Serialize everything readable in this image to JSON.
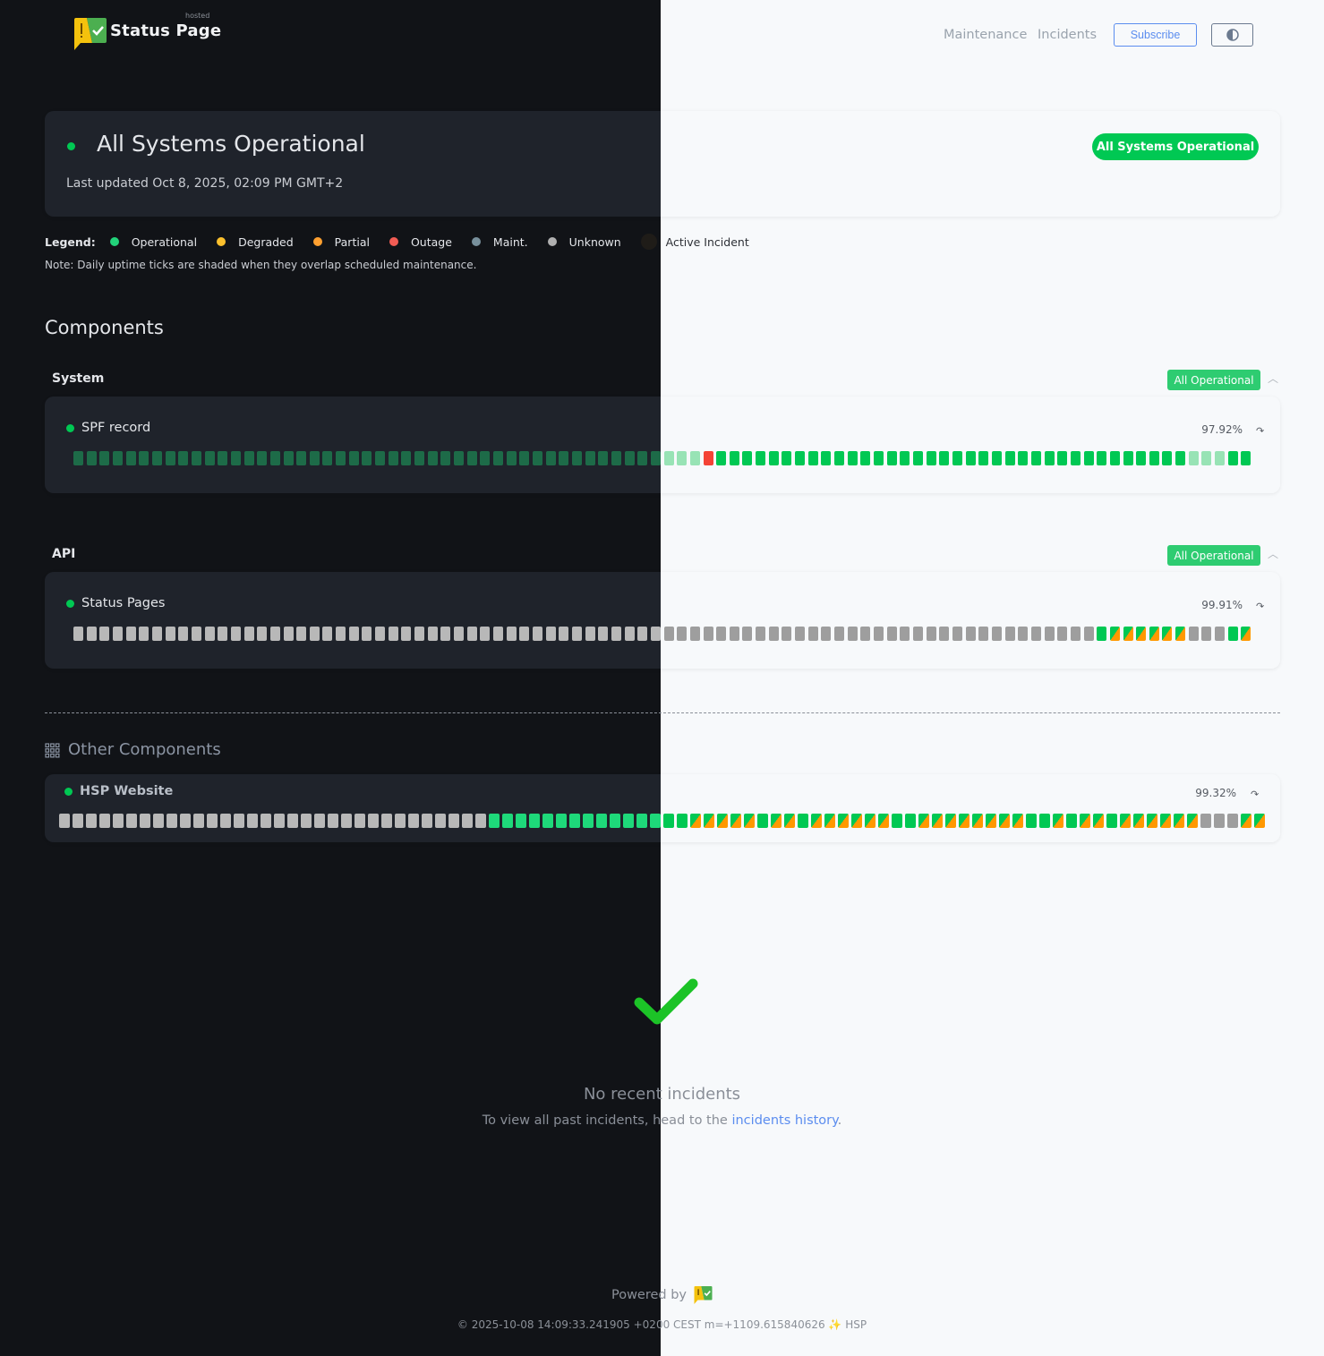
{
  "header": {
    "brand": "Status Page",
    "brand_tag": "hosted",
    "nav": [
      "Maintenance",
      "Incidents"
    ],
    "subscribe_label": "Subscribe",
    "theme_toggle_icon": "half-circle-icon"
  },
  "status": {
    "title": "All Systems Operational",
    "last_updated": "Last updated Oct 8, 2025, 02:09 PM GMT+2",
    "badge": "All Systems Operational"
  },
  "legend": {
    "label": "Legend:",
    "items": [
      {
        "label": "Operational",
        "color": "#22d37a"
      },
      {
        "label": "Degraded",
        "color": "#fbc02d"
      },
      {
        "label": "Partial",
        "color": "#ffa030"
      },
      {
        "label": "Outage",
        "color": "#f25c54"
      },
      {
        "label": "Maint.",
        "color": "#78909c"
      },
      {
        "label": "Unknown",
        "color": "#b0b0b0"
      },
      {
        "label": "Active Incident",
        "color": "#1f1c18"
      }
    ],
    "note": "Note: Daily uptime ticks are shaded when they overlap scheduled maintenance."
  },
  "components_title": "Components",
  "groups": [
    {
      "name": "System",
      "badge": "All Operational",
      "components": [
        {
          "name": "SPF record",
          "uptime": "97.92%",
          "ticks": [
            [
              "shaded",
              48
            ],
            [
              "outage",
              1
            ],
            [
              "operational",
              36
            ],
            [
              "shaded",
              3
            ],
            [
              "operational",
              2
            ]
          ]
        }
      ]
    },
    {
      "name": "API",
      "badge": "All Operational",
      "components": [
        {
          "name": "Status Pages",
          "uptime": "99.91%",
          "ticks": [
            [
              "unknown",
              78
            ],
            [
              "operational",
              1
            ],
            [
              "split",
              6
            ],
            [
              "unknown",
              3
            ],
            [
              "operational",
              1
            ],
            [
              "split",
              1
            ]
          ]
        }
      ]
    }
  ],
  "other": {
    "title": "Other Components",
    "components": [
      {
        "name": "HSP Website",
        "uptime": "99.32%",
        "ticks": [
          [
            "unknown",
            32
          ],
          [
            "operational",
            15
          ],
          [
            "split",
            5
          ],
          [
            "operational",
            1
          ],
          [
            "split",
            2
          ],
          [
            "operational",
            1
          ],
          [
            "split",
            6
          ],
          [
            "operational",
            2
          ],
          [
            "split",
            8
          ],
          [
            "operational",
            2
          ],
          [
            "split",
            1
          ],
          [
            "operational",
            1
          ],
          [
            "split",
            2
          ],
          [
            "operational",
            1
          ],
          [
            "split",
            6
          ],
          [
            "unknown",
            3
          ],
          [
            "split",
            2
          ]
        ]
      }
    ]
  },
  "incidents": {
    "title": "No recent incidents",
    "text": "To view all past incidents, head to the",
    "link": "incidents history",
    "suffix": "."
  },
  "footer": {
    "powered_by": "Powered by",
    "copyright": "© 2025-10-08 14:09:33.241905 +0200 CEST m=+1109.615840626 ✨ HSP"
  }
}
